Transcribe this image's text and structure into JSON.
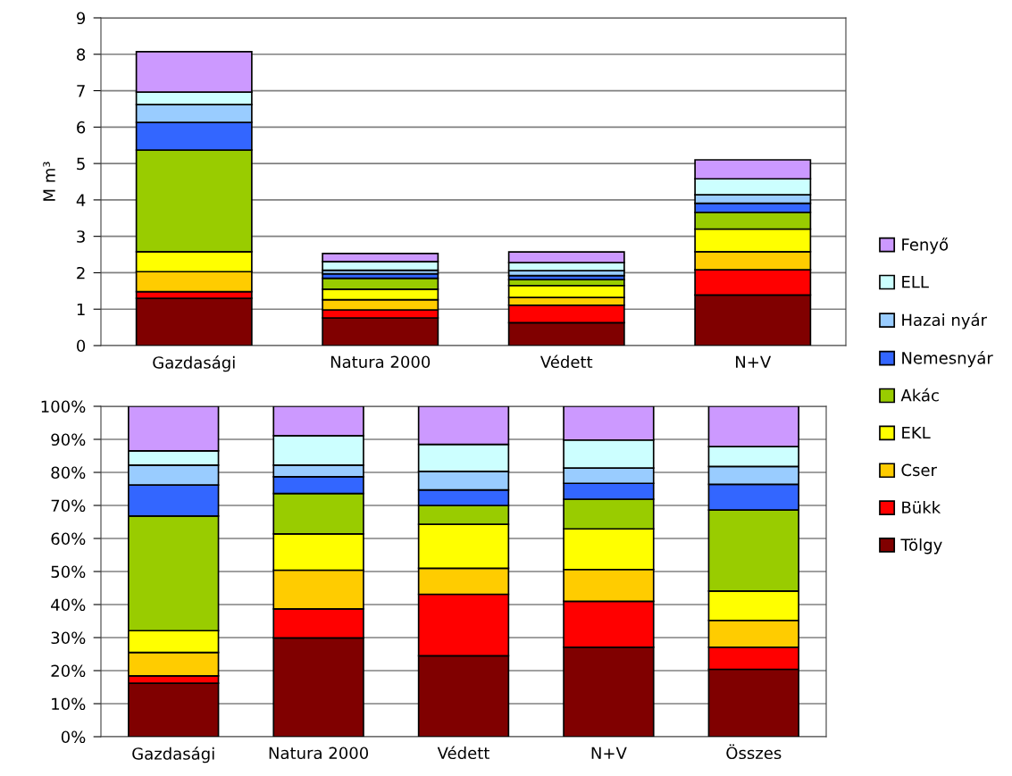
{
  "chart_data": [
    {
      "type": "bar",
      "stacked": true,
      "ylabel": "M m³",
      "categories": [
        "Gazdasági",
        "Natura 2000",
        "Védett",
        "N+V"
      ],
      "ylim": [
        0,
        9
      ],
      "yticks": [
        0,
        1,
        2,
        3,
        4,
        5,
        6,
        7,
        8,
        9
      ],
      "grid": "y",
      "legend": "right",
      "series": [
        {
          "name": "Tölgy",
          "color": "#800000",
          "values": [
            1.3,
            0.76,
            0.63,
            1.39
          ]
        },
        {
          "name": "Bükk",
          "color": "#ff0000",
          "values": [
            0.18,
            0.22,
            0.48,
            0.69
          ]
        },
        {
          "name": "Cser",
          "color": "#ffcc00",
          "values": [
            0.55,
            0.28,
            0.21,
            0.5
          ]
        },
        {
          "name": "EKL",
          "color": "#ffff00",
          "values": [
            0.55,
            0.29,
            0.33,
            0.62
          ]
        },
        {
          "name": "Akác",
          "color": "#99cc00",
          "values": [
            2.79,
            0.3,
            0.16,
            0.46
          ]
        },
        {
          "name": "Nemesnyár",
          "color": "#3366ff",
          "values": [
            0.76,
            0.12,
            0.11,
            0.25
          ]
        },
        {
          "name": "Hazai nyár",
          "color": "#99ccff",
          "values": [
            0.49,
            0.1,
            0.14,
            0.23
          ]
        },
        {
          "name": "ELL",
          "color": "#ccffff",
          "values": [
            0.34,
            0.24,
            0.22,
            0.44
          ]
        },
        {
          "name": "Fenyő",
          "color": "#cc99ff",
          "values": [
            1.11,
            0.22,
            0.29,
            0.52
          ]
        }
      ]
    },
    {
      "type": "bar",
      "stacked": true,
      "categories": [
        "Gazdasági",
        "Natura 2000",
        "Védett",
        "N+V",
        "Összes"
      ],
      "ylim": [
        0,
        100
      ],
      "yticks": [
        {
          "value": 0,
          "label": "0%"
        },
        {
          "value": 10,
          "label": "10%"
        },
        {
          "value": 20,
          "label": "20%"
        },
        {
          "value": 30,
          "label": "30%"
        },
        {
          "value": 40,
          "label": "40%"
        },
        {
          "value": 50,
          "label": "50%"
        },
        {
          "value": 60,
          "label": "60%"
        },
        {
          "value": 70,
          "label": "70%"
        },
        {
          "value": 80,
          "label": "80%"
        },
        {
          "value": 90,
          "label": "90%"
        },
        {
          "value": 100,
          "label": "100%"
        }
      ],
      "grid": "y",
      "series": [
        {
          "color": "#800000",
          "values": [
            16.2,
            29.9,
            24.5,
            27.1,
            20.4
          ]
        },
        {
          "color": "#ff0000",
          "values": [
            2.2,
            8.8,
            18.6,
            13.9,
            6.7
          ]
        },
        {
          "color": "#ffcc00",
          "values": [
            7.1,
            11.7,
            7.9,
            9.6,
            8.1
          ]
        },
        {
          "color": "#ffff00",
          "values": [
            6.6,
            11.0,
            13.3,
            12.3,
            8.9
          ]
        },
        {
          "color": "#99cc00",
          "values": [
            34.7,
            12.2,
            5.7,
            9.0,
            24.5
          ]
        },
        {
          "color": "#3366ff",
          "values": [
            9.4,
            5.1,
            4.7,
            4.8,
            7.8
          ]
        },
        {
          "color": "#99ccff",
          "values": [
            6.0,
            3.5,
            5.6,
            4.6,
            5.4
          ]
        },
        {
          "color": "#ccffff",
          "values": [
            4.3,
            8.9,
            8.2,
            8.5,
            6.0
          ]
        },
        {
          "color": "#cc99ff",
          "values": [
            13.5,
            8.9,
            11.5,
            10.2,
            12.2
          ]
        }
      ]
    }
  ]
}
